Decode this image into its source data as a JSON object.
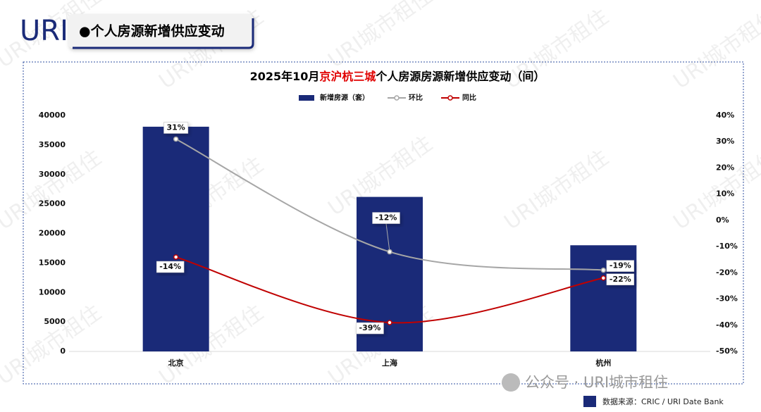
{
  "logo": "URI",
  "header": "●个人房源新增供应变动",
  "watermark": "URI城市租住",
  "wechat_account": "公众号 · URI城市租住",
  "source": "数据来源：CRIC / URI Date Bank",
  "chart_data": {
    "type": "bar",
    "title": [
      "2025年10月",
      "京沪杭三城",
      "个人房源房源新增供应变动（间）"
    ],
    "title_highlight_color": "#e00000",
    "categories": [
      "北京",
      "上海",
      "杭州"
    ],
    "series": [
      {
        "name": "新增房源（套）",
        "type": "bar",
        "color": "#1a2a78",
        "values": [
          38100,
          26200,
          18000
        ]
      },
      {
        "name": "环比",
        "type": "line",
        "axis": "y2",
        "color": "#a6a6a6",
        "values": [
          31,
          -12,
          -19
        ],
        "value_labels": [
          "31%",
          "-12%",
          "-19%"
        ]
      },
      {
        "name": "同比",
        "type": "line",
        "axis": "y2",
        "color": "#c00000",
        "values": [
          -14,
          -39,
          -22
        ],
        "value_labels": [
          "-14%",
          "-39%",
          "-22%"
        ]
      }
    ],
    "ylim": [
      0,
      40000
    ],
    "yticks": [
      0,
      5000,
      10000,
      15000,
      20000,
      25000,
      30000,
      35000,
      40000
    ],
    "y2lim": [
      -50,
      40
    ],
    "y2ticks": [
      {
        "value": -50,
        "label": "-50%"
      },
      {
        "value": -40,
        "label": "-40%"
      },
      {
        "value": -30,
        "label": "-30%"
      },
      {
        "value": -20,
        "label": "-20%"
      },
      {
        "value": -10,
        "label": "-10%"
      },
      {
        "value": 0,
        "label": "0%"
      },
      {
        "value": 10,
        "label": "10%"
      },
      {
        "value": 20,
        "label": "20%"
      },
      {
        "value": 30,
        "label": "30%"
      },
      {
        "value": 40,
        "label": "40%"
      }
    ],
    "legend": "top"
  }
}
